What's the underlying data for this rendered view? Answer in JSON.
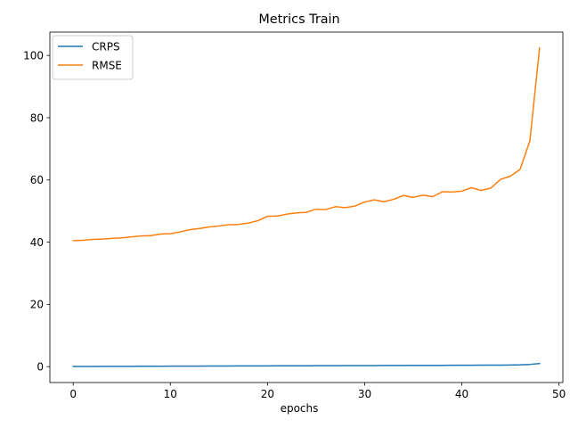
{
  "chart_data": {
    "type": "line",
    "title": "Metrics Train",
    "xlabel": "epochs",
    "ylabel": "",
    "xlim": [
      -2.4,
      50.4
    ],
    "ylim": [
      -5.1,
      107.5
    ],
    "xticks": [
      0,
      10,
      20,
      30,
      40,
      50
    ],
    "yticks": [
      0,
      20,
      40,
      60,
      80,
      100
    ],
    "grid": false,
    "legend_position": "top-left",
    "series": [
      {
        "name": "CRPS",
        "color": "#1f77b4",
        "x": [
          0,
          1,
          2,
          3,
          4,
          5,
          6,
          7,
          8,
          9,
          10,
          11,
          12,
          13,
          14,
          15,
          16,
          17,
          18,
          19,
          20,
          21,
          22,
          23,
          24,
          25,
          26,
          27,
          28,
          29,
          30,
          31,
          32,
          33,
          34,
          35,
          36,
          37,
          38,
          39,
          40,
          41,
          42,
          43,
          44,
          45,
          46,
          47,
          48
        ],
        "values": [
          0.05,
          0.06,
          0.07,
          0.08,
          0.09,
          0.1,
          0.11,
          0.12,
          0.13,
          0.14,
          0.15,
          0.16,
          0.17,
          0.18,
          0.19,
          0.2,
          0.21,
          0.22,
          0.23,
          0.24,
          0.25,
          0.26,
          0.27,
          0.28,
          0.29,
          0.3,
          0.31,
          0.32,
          0.33,
          0.34,
          0.35,
          0.36,
          0.37,
          0.38,
          0.39,
          0.4,
          0.41,
          0.42,
          0.43,
          0.44,
          0.45,
          0.46,
          0.47,
          0.48,
          0.5,
          0.52,
          0.58,
          0.72,
          1.0
        ]
      },
      {
        "name": "RMSE",
        "color": "#ff7f0e",
        "x": [
          0,
          1,
          2,
          3,
          4,
          5,
          6,
          7,
          8,
          9,
          10,
          11,
          12,
          13,
          14,
          15,
          16,
          17,
          18,
          19,
          20,
          21,
          22,
          23,
          24,
          25,
          26,
          27,
          28,
          29,
          30,
          31,
          32,
          33,
          34,
          35,
          36,
          37,
          38,
          39,
          40,
          41,
          42,
          43,
          44,
          45,
          46,
          47,
          48
        ],
        "values": [
          40.5,
          40.6,
          40.9,
          41.0,
          41.2,
          41.4,
          41.7,
          42.0,
          42.1,
          42.6,
          42.7,
          43.3,
          44.0,
          44.4,
          44.9,
          45.2,
          45.6,
          45.7,
          46.1,
          46.9,
          48.3,
          48.4,
          49.0,
          49.4,
          49.6,
          50.6,
          50.5,
          51.4,
          51.1,
          51.6,
          52.9,
          53.6,
          53.0,
          53.8,
          55.0,
          54.4,
          55.1,
          54.6,
          56.2,
          56.1,
          56.4,
          57.5,
          56.6,
          57.4,
          60.2,
          61.2,
          63.4,
          72.5,
          102.4
        ]
      }
    ]
  }
}
